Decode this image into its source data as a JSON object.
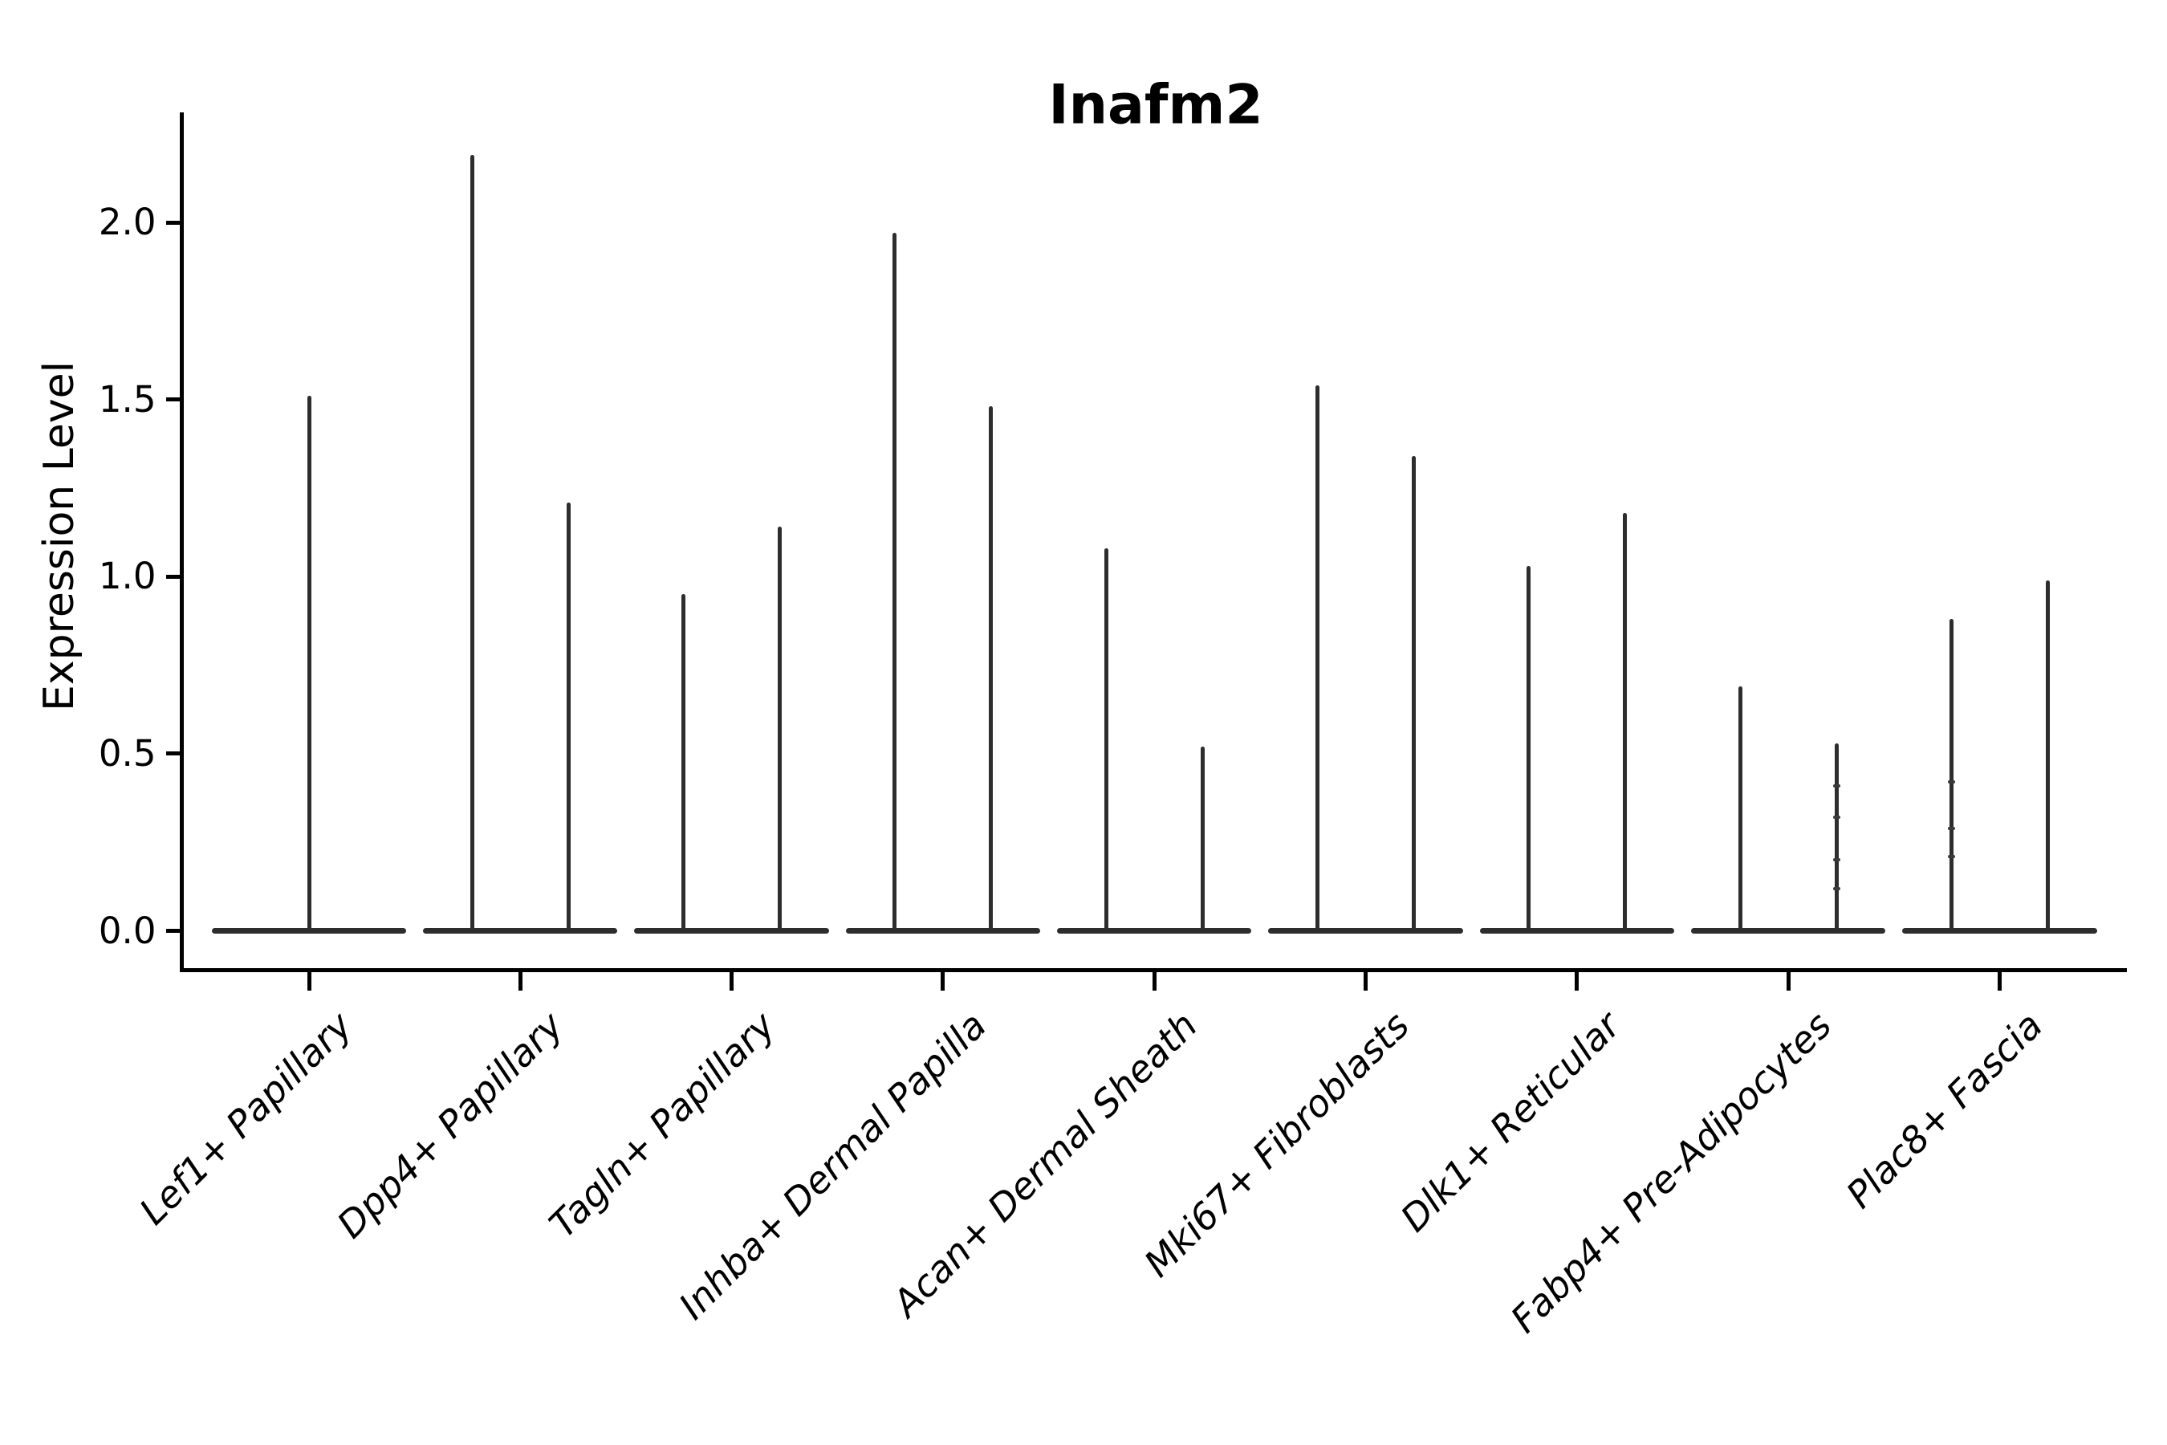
{
  "chart_data": {
    "type": "violin",
    "title": "Inafm2",
    "ylabel": "Expression Level",
    "xlabel": "",
    "yticks": [
      "0.0",
      "0.5",
      "1.0",
      "1.5",
      "2.0"
    ],
    "ytick_values": [
      0.0,
      0.5,
      1.0,
      1.5,
      2.0
    ],
    "ylim": [
      -0.11,
      2.31
    ],
    "grid": false,
    "legend": "none",
    "categories": [
      "Lef1+ Papillary",
      "Dpp4+ Papillary",
      "Tagln+ Papillary",
      "Inhba+ Dermal Papilla",
      "Acan+ Dermal Sheath",
      "Mki67+ Fibroblasts",
      "Dlk1+ Reticular",
      "Fabp4+ Pre-Adipocytes",
      "Plac8+ Fascia"
    ],
    "violin_width_fraction": 0.92,
    "baseline_value": 0.0,
    "violins": [
      {
        "category": "Lef1+ Papillary",
        "spikes": [
          {
            "offset": 0.0,
            "max": 1.51
          }
        ]
      },
      {
        "category": "Dpp4+ Papillary",
        "spikes": [
          {
            "offset": -0.228,
            "max": 2.19
          },
          {
            "offset": 0.228,
            "max": 1.21
          }
        ]
      },
      {
        "category": "Tagln+ Papillary",
        "spikes": [
          {
            "offset": -0.228,
            "max": 0.95
          },
          {
            "offset": 0.228,
            "max": 1.14
          }
        ]
      },
      {
        "category": "Inhba+ Dermal Papilla",
        "spikes": [
          {
            "offset": -0.228,
            "max": 1.97
          },
          {
            "offset": 0.228,
            "max": 1.48
          }
        ]
      },
      {
        "category": "Acan+ Dermal Sheath",
        "spikes": [
          {
            "offset": -0.228,
            "max": 1.08
          },
          {
            "offset": 0.228,
            "max": 0.52
          }
        ]
      },
      {
        "category": "Mki67+ Fibroblasts",
        "spikes": [
          {
            "offset": -0.228,
            "max": 1.54
          },
          {
            "offset": 0.228,
            "max": 1.34
          }
        ]
      },
      {
        "category": "Dlk1+ Reticular",
        "spikes": [
          {
            "offset": -0.228,
            "max": 1.03
          },
          {
            "offset": 0.228,
            "max": 1.18
          }
        ]
      },
      {
        "category": "Fabp4+ Pre-Adipocytes",
        "spikes": [
          {
            "offset": -0.228,
            "max": 0.69
          },
          {
            "offset": 0.228,
            "max": 0.53
          }
        ]
      },
      {
        "category": "Plac8+ Fascia",
        "spikes": [
          {
            "offset": -0.228,
            "max": 0.88
          },
          {
            "offset": 0.228,
            "max": 0.99
          }
        ]
      }
    ],
    "jitter_dots": [
      {
        "category": "Fabp4+ Pre-Adipocytes",
        "offset": 0.228,
        "values": [
          0.41,
          0.32,
          0.2,
          0.12
        ]
      },
      {
        "category": "Plac8+ Fascia",
        "offset": -0.228,
        "values": [
          0.42,
          0.29,
          0.21
        ]
      }
    ],
    "colors": {
      "line": "#000000",
      "violin": "#2d2d2d",
      "background": "#ffffff"
    }
  }
}
